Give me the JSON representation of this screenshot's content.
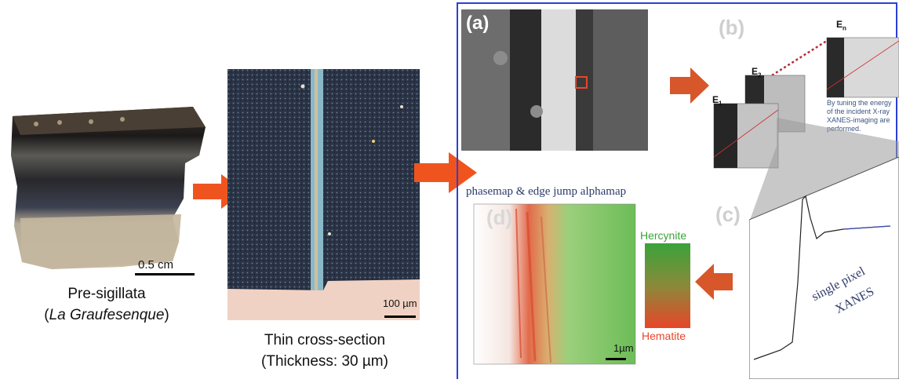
{
  "sample": {
    "scale_bar": "0.5 cm",
    "caption_line1": "Pre-sigillata",
    "caption_line2_open": "(",
    "caption_line2_italic": "La Graufesenque",
    "caption_line2_close": ")"
  },
  "thin_section": {
    "scale_bar": "100 µm",
    "caption_line1": "Thin cross-section",
    "caption_line2": "(Thickness: 30 µm)"
  },
  "panel_a": {
    "letter": "(a)"
  },
  "panel_b": {
    "letter": "(b)",
    "label_e1": "E",
    "label_e1_sub": "1",
    "label_e2": "E",
    "label_e2_sub": "2",
    "label_en": "E",
    "label_en_sub": "n",
    "text_line1": "By tuning the energy",
    "text_line2": "of the incident X-ray",
    "text_line3": "XANES-imaging are",
    "text_line4": "performed."
  },
  "panel_c": {
    "letter": "(c)",
    "text_line1": "single pixel",
    "text_line2": "XANES"
  },
  "panel_d": {
    "letter": "(d)",
    "title": "phasemap & edge jump alphamap",
    "scale_bar": "1µm",
    "legend_top": "Hercynite",
    "legend_bottom": "Hematite"
  },
  "colors": {
    "arrow": "#f0541e",
    "frame": "#2c3fd6",
    "hercynite": "#3aa33a",
    "hematite": "#e8452a"
  }
}
